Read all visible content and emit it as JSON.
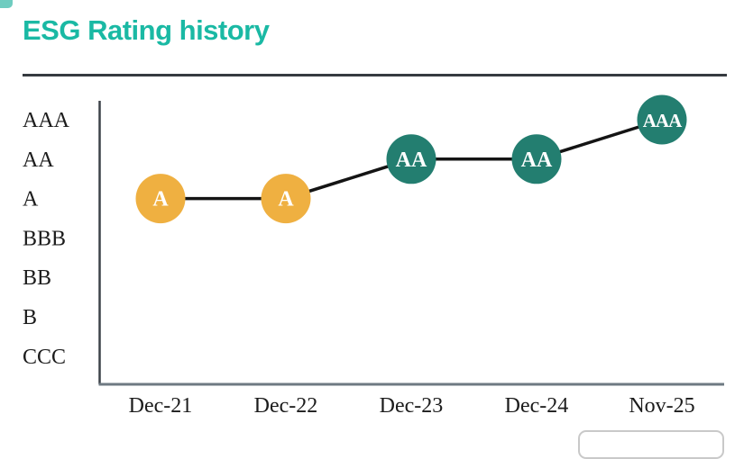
{
  "header": {
    "title": "ESG Rating history",
    "title_color": "#1ab9a4",
    "rule_color": "#363b40"
  },
  "chart_data": {
    "type": "line",
    "title": "ESG Rating history",
    "categories": [
      "Dec-21",
      "Dec-22",
      "Dec-23",
      "Dec-24",
      "Nov-25"
    ],
    "series": [
      {
        "name": "ESG Rating",
        "values": [
          "A",
          "A",
          "AA",
          "AA",
          "AAA"
        ]
      }
    ],
    "y_ticks_top_to_bottom": [
      "AAA",
      "AA",
      "A",
      "BBB",
      "BB",
      "B",
      "CCC"
    ],
    "point_colors": [
      "#efb041",
      "#efb041",
      "#237e70",
      "#237e70",
      "#237e70"
    ],
    "point_label_color": "#ffffff",
    "connector_color": "#141414",
    "y_axis_color": "#3c4248",
    "x_axis_color": "#6e7a82",
    "tick_label_color": "#1c1c1c",
    "grid": false,
    "legend": "none",
    "xlabel": "",
    "ylabel": ""
  }
}
